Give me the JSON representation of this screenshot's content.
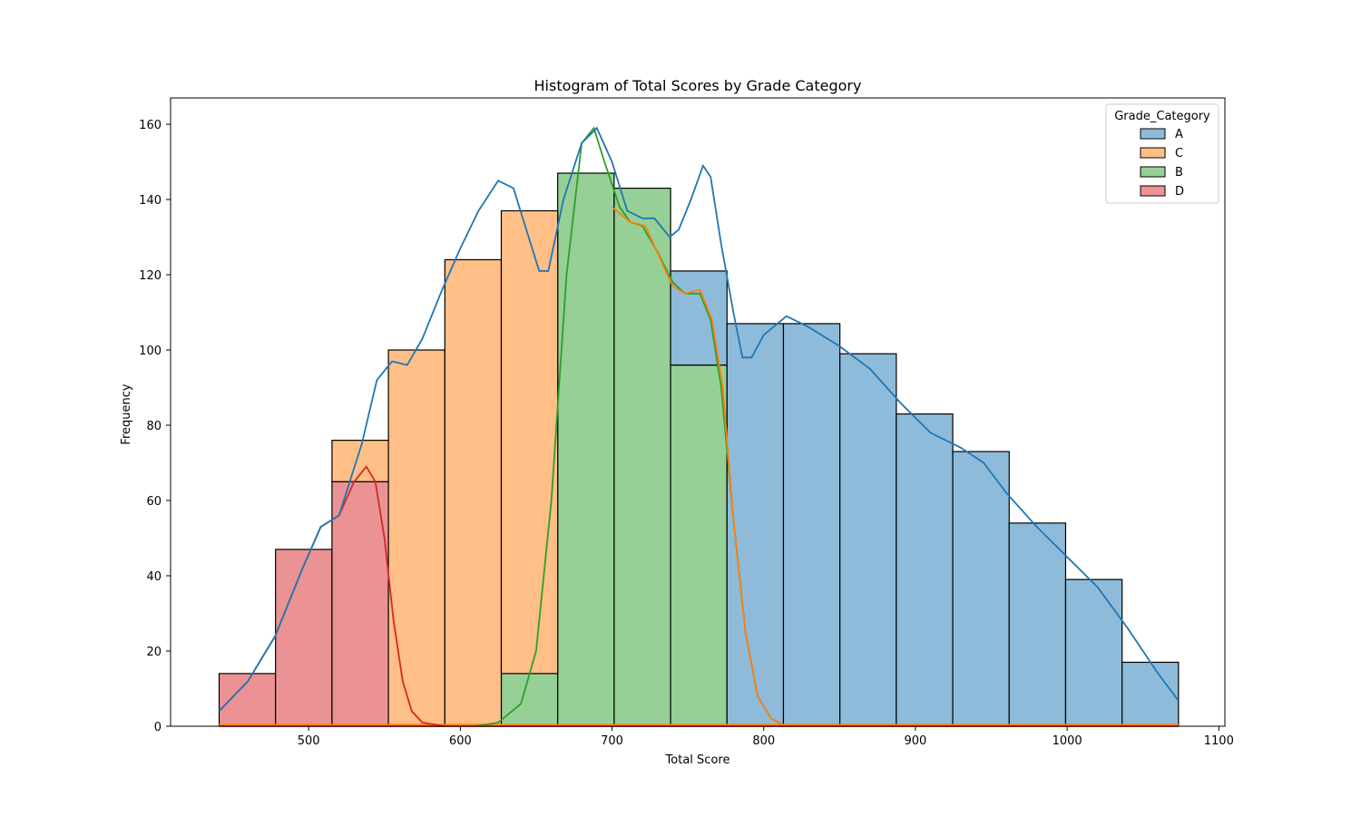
{
  "chart_data": {
    "type": "histogram",
    "title": "Histogram of Total Scores by Grade Category",
    "xlabel": "Total Score",
    "ylabel": "Frequency",
    "xlim": [
      409,
      1104
    ],
    "ylim": [
      0,
      167
    ],
    "xticks": [
      500,
      600,
      700,
      800,
      900,
      1000,
      1100
    ],
    "yticks": [
      0,
      20,
      40,
      60,
      80,
      100,
      120,
      140,
      160
    ],
    "stacked": true,
    "bin_edges": [
      441,
      478.2,
      515.4,
      552.6,
      589.8,
      627.0,
      664.2,
      701.4,
      738.6,
      775.8,
      813.0,
      850.2,
      887.4,
      924.6,
      961.8,
      999.0,
      1036.2,
      1073.4
    ],
    "legend": {
      "title": "Grade_Category",
      "placement": "upper right"
    },
    "series": [
      {
        "name": "D",
        "color": "#d62728",
        "counts": [
          14,
          47,
          65,
          0,
          0,
          0,
          0,
          0,
          0,
          0,
          0,
          0,
          0,
          0,
          0,
          0,
          0
        ]
      },
      {
        "name": "B",
        "color": "#2ca02c",
        "counts": [
          0,
          0,
          0,
          0,
          0,
          14,
          147,
          143,
          96,
          0,
          0,
          0,
          0,
          0,
          0,
          0,
          0
        ]
      },
      {
        "name": "C",
        "color": "#ff7f0e",
        "counts": [
          0,
          0,
          11,
          100,
          124,
          123,
          0,
          0,
          0,
          0,
          0,
          0,
          0,
          0,
          0,
          0,
          0
        ]
      },
      {
        "name": "A",
        "color": "#1f77b4",
        "counts": [
          0,
          0,
          0,
          0,
          0,
          0,
          0,
          0,
          25,
          107,
          107,
          99,
          83,
          73,
          54,
          39,
          17
        ]
      }
    ],
    "legend_order": [
      "A",
      "C",
      "B",
      "D"
    ],
    "kde": {
      "total": [
        [
          441,
          4
        ],
        [
          460,
          12
        ],
        [
          478,
          24
        ],
        [
          496,
          42
        ],
        [
          508,
          53
        ],
        [
          520,
          56
        ],
        [
          535,
          75
        ],
        [
          545,
          92
        ],
        [
          555,
          97
        ],
        [
          565,
          96
        ],
        [
          575,
          103
        ],
        [
          588,
          116
        ],
        [
          600,
          127
        ],
        [
          612,
          137
        ],
        [
          625,
          145
        ],
        [
          635,
          143
        ],
        [
          645,
          130
        ],
        [
          652,
          121
        ],
        [
          658,
          121
        ],
        [
          668,
          140
        ],
        [
          680,
          155
        ],
        [
          690,
          159
        ],
        [
          700,
          150
        ],
        [
          710,
          137
        ],
        [
          720,
          135
        ],
        [
          728,
          135
        ],
        [
          738,
          130
        ],
        [
          744,
          132
        ],
        [
          752,
          140
        ],
        [
          760,
          149
        ],
        [
          765,
          146
        ],
        [
          772,
          128
        ],
        [
          780,
          110
        ],
        [
          786,
          98
        ],
        [
          792,
          98
        ],
        [
          800,
          104
        ],
        [
          815,
          109
        ],
        [
          830,
          106
        ],
        [
          850,
          101
        ],
        [
          870,
          95
        ],
        [
          890,
          86
        ],
        [
          910,
          78
        ],
        [
          930,
          74
        ],
        [
          945,
          70
        ],
        [
          960,
          62
        ],
        [
          980,
          53
        ],
        [
          1000,
          45
        ],
        [
          1020,
          37
        ],
        [
          1040,
          26
        ],
        [
          1060,
          14
        ],
        [
          1073,
          7
        ]
      ],
      "B": [
        [
          610,
          0
        ],
        [
          625,
          1
        ],
        [
          640,
          6
        ],
        [
          650,
          20
        ],
        [
          660,
          60
        ],
        [
          670,
          120
        ],
        [
          680,
          155
        ],
        [
          688,
          159
        ],
        [
          695,
          150
        ],
        [
          705,
          138
        ],
        [
          712,
          134
        ],
        [
          720,
          133
        ],
        [
          730,
          126
        ],
        [
          740,
          118
        ],
        [
          748,
          115
        ],
        [
          758,
          115
        ],
        [
          765,
          108
        ],
        [
          772,
          90
        ],
        [
          780,
          55
        ],
        [
          788,
          25
        ],
        [
          796,
          8
        ],
        [
          805,
          2
        ],
        [
          815,
          0
        ]
      ],
      "C": [
        [
          700,
          138
        ],
        [
          712,
          134
        ],
        [
          722,
          133
        ],
        [
          732,
          124
        ],
        [
          740,
          117
        ],
        [
          748,
          115
        ],
        [
          758,
          116
        ],
        [
          766,
          108
        ],
        [
          773,
          90
        ],
        [
          780,
          55
        ],
        [
          788,
          25
        ],
        [
          796,
          8
        ],
        [
          805,
          2
        ],
        [
          815,
          0
        ]
      ],
      "D": [
        [
          441,
          4
        ],
        [
          460,
          12
        ],
        [
          478,
          24
        ],
        [
          496,
          42
        ],
        [
          508,
          53
        ],
        [
          520,
          56
        ],
        [
          530,
          65
        ],
        [
          538,
          69
        ],
        [
          544,
          65
        ],
        [
          550,
          50
        ],
        [
          556,
          28
        ],
        [
          562,
          12
        ],
        [
          568,
          4
        ],
        [
          575,
          1
        ],
        [
          590,
          0
        ]
      ]
    }
  }
}
